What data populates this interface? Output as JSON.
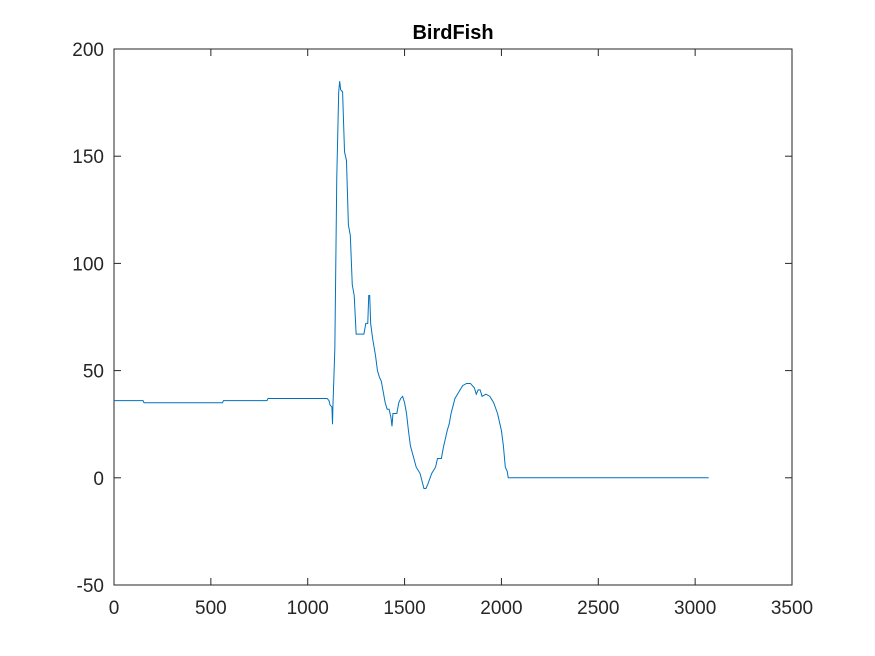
{
  "chart_data": {
    "type": "line",
    "title": "BirdFish",
    "x": [
      0,
      150,
      155,
      560,
      565,
      790,
      795,
      1100,
      1110,
      1115,
      1125,
      1128,
      1130,
      1140,
      1150,
      1160,
      1165,
      1170,
      1180,
      1190,
      1200,
      1210,
      1220,
      1230,
      1240,
      1250,
      1290,
      1300,
      1310,
      1315,
      1320,
      1325,
      1335,
      1350,
      1360,
      1370,
      1380,
      1390,
      1400,
      1410,
      1420,
      1430,
      1435,
      1440,
      1460,
      1470,
      1480,
      1490,
      1500,
      1510,
      1520,
      1530,
      1545,
      1560,
      1580,
      1600,
      1610,
      1620,
      1640,
      1660,
      1670,
      1690,
      1700,
      1710,
      1720,
      1730,
      1740,
      1760,
      1780,
      1800,
      1820,
      1840,
      1860,
      1870,
      1880,
      1890,
      1900,
      1920,
      1940,
      1960,
      1980,
      2000,
      2010,
      2020,
      2030,
      2035,
      3070
    ],
    "series": [
      {
        "color": "#0072bd",
        "values": [
          36,
          36,
          35,
          35,
          36,
          36,
          37,
          37,
          36,
          34,
          33,
          25,
          33,
          60,
          140,
          180,
          185,
          181,
          180,
          152,
          148,
          118,
          113,
          90,
          85,
          67,
          67,
          72,
          72,
          85,
          85,
          72,
          65,
          57,
          50,
          47,
          45,
          40,
          35,
          32,
          32,
          28,
          24,
          30,
          30,
          35,
          37,
          38,
          35,
          30,
          22,
          15,
          10,
          5,
          2,
          -5,
          -5,
          -3,
          2,
          5,
          9,
          9,
          14,
          18,
          22,
          25,
          30,
          37,
          40,
          43,
          44,
          44,
          42,
          39,
          41,
          41,
          38,
          39,
          38,
          35,
          30,
          22,
          15,
          5,
          3,
          0,
          0
        ]
      }
    ],
    "xlim": [
      0,
      3500
    ],
    "xticks": [
      0,
      500,
      1000,
      1500,
      2000,
      2500,
      3000,
      3500
    ],
    "ylim": [
      -50,
      200
    ],
    "yticks": [
      -50,
      0,
      50,
      100,
      150,
      200
    ]
  }
}
